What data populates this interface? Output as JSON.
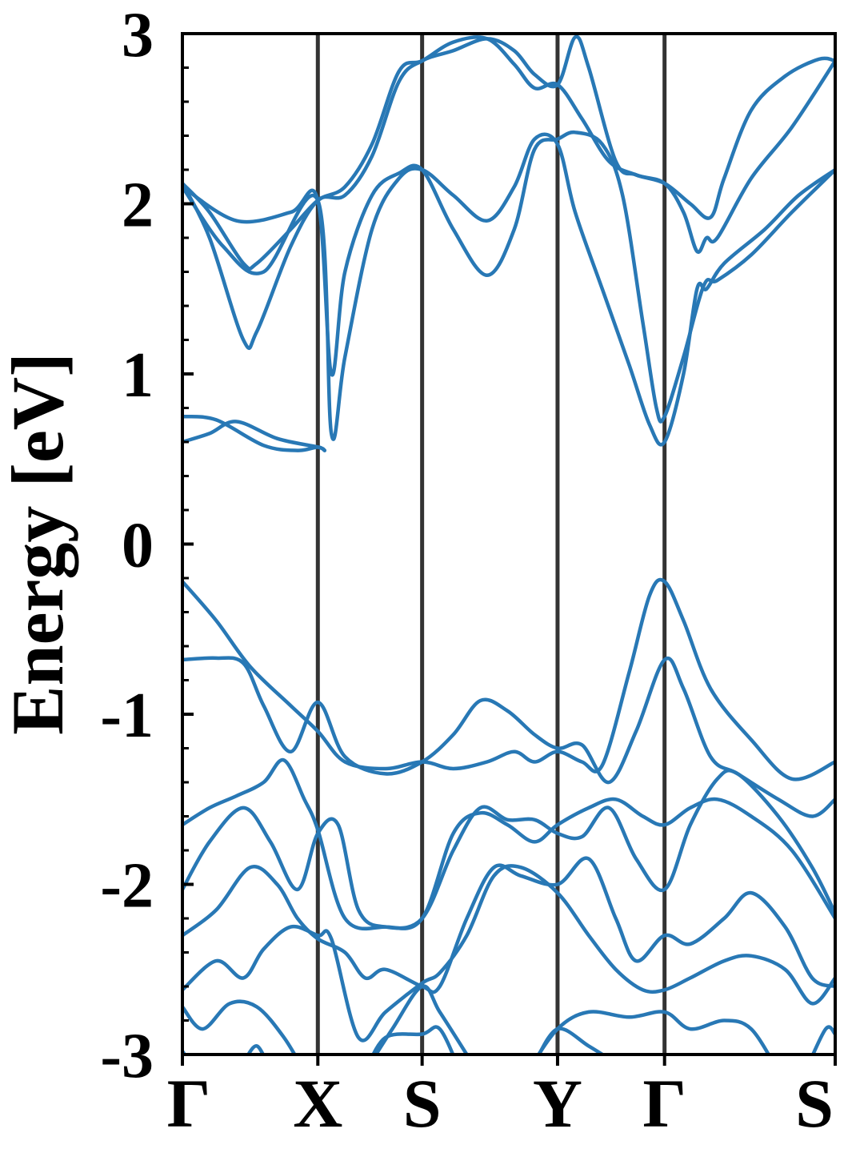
{
  "chart_data": {
    "type": "line",
    "title": "",
    "xlabel": "",
    "ylabel": "Energy [eV]",
    "ylim": [
      -3,
      3
    ],
    "yticks": [
      "-3",
      "-2",
      "-1",
      "0",
      "1",
      "2",
      "3"
    ],
    "grid": false,
    "line_color": "#2878b5",
    "kpath_line_color": "#333333",
    "kpoints": [
      {
        "label": "Γ",
        "x": 0.0
      },
      {
        "label": "X",
        "x": 1.0
      },
      {
        "label": "S",
        "x": 1.77
      },
      {
        "label": "Y",
        "x": 2.77
      },
      {
        "label": "Γ",
        "x": 3.56
      },
      {
        "label": "S",
        "x": 4.82
      }
    ],
    "series": [
      {
        "values": [
          [
            0,
            2.12
          ],
          [
            0.2,
            1.95
          ],
          [
            0.45,
            1.65
          ],
          [
            0.55,
            1.65
          ],
          [
            0.8,
            1.85
          ],
          [
            1.0,
            2.02
          ],
          [
            1.2,
            2.1
          ],
          [
            1.4,
            2.35
          ],
          [
            1.6,
            2.78
          ],
          [
            1.77,
            2.84
          ],
          [
            2.0,
            2.95
          ],
          [
            2.25,
            2.97
          ],
          [
            2.45,
            2.82
          ],
          [
            2.6,
            2.68
          ],
          [
            2.77,
            2.7
          ],
          [
            2.95,
            2.5
          ],
          [
            3.15,
            2.25
          ],
          [
            3.35,
            2.17
          ],
          [
            3.56,
            2.12
          ],
          [
            3.75,
            2.0
          ],
          [
            3.9,
            1.92
          ],
          [
            4.0,
            2.15
          ],
          [
            4.2,
            2.55
          ],
          [
            4.45,
            2.75
          ],
          [
            4.7,
            2.85
          ],
          [
            4.82,
            2.84
          ]
        ]
      },
      {
        "values": [
          [
            0,
            2.12
          ],
          [
            0.2,
            1.8
          ],
          [
            0.45,
            1.2
          ],
          [
            0.55,
            1.25
          ],
          [
            0.8,
            1.75
          ],
          [
            1.0,
            2.02
          ],
          [
            1.2,
            2.05
          ],
          [
            1.4,
            2.28
          ],
          [
            1.6,
            2.72
          ],
          [
            1.77,
            2.84
          ],
          [
            2.0,
            2.9
          ],
          [
            2.25,
            2.97
          ],
          [
            2.45,
            2.9
          ],
          [
            2.6,
            2.76
          ],
          [
            2.77,
            2.7
          ],
          [
            2.9,
            2.98
          ],
          [
            3.0,
            2.8
          ],
          [
            3.2,
            2.25
          ],
          [
            3.35,
            2.17
          ],
          [
            3.56,
            2.12
          ],
          [
            3.7,
            1.95
          ],
          [
            3.8,
            1.72
          ],
          [
            3.87,
            1.8
          ],
          [
            3.95,
            1.8
          ],
          [
            4.2,
            2.15
          ],
          [
            4.5,
            2.45
          ],
          [
            4.82,
            2.84
          ]
        ]
      },
      {
        "values": [
          [
            0,
            2.1
          ],
          [
            0.3,
            1.75
          ],
          [
            0.6,
            1.6
          ],
          [
            1.0,
            2.02
          ],
          [
            1.1,
            0.65
          ],
          [
            1.2,
            1.1
          ],
          [
            1.4,
            1.85
          ],
          [
            1.6,
            2.15
          ],
          [
            1.77,
            2.2
          ],
          [
            2.0,
            2.05
          ],
          [
            2.25,
            1.9
          ],
          [
            2.45,
            2.1
          ],
          [
            2.6,
            2.38
          ],
          [
            2.77,
            2.35
          ],
          [
            2.9,
            1.95
          ],
          [
            3.1,
            1.5
          ],
          [
            3.3,
            1.05
          ],
          [
            3.45,
            0.7
          ],
          [
            3.56,
            0.6
          ],
          [
            3.7,
            1.0
          ],
          [
            3.8,
            1.5
          ],
          [
            3.87,
            1.5
          ],
          [
            4.0,
            1.65
          ],
          [
            4.3,
            1.85
          ],
          [
            4.55,
            2.05
          ],
          [
            4.82,
            2.2
          ]
        ]
      },
      {
        "values": [
          [
            0,
            2.1
          ],
          [
            0.4,
            1.9
          ],
          [
            0.8,
            1.95
          ],
          [
            1.0,
            2.02
          ],
          [
            1.1,
            1.0
          ],
          [
            1.2,
            1.6
          ],
          [
            1.4,
            2.05
          ],
          [
            1.6,
            2.18
          ],
          [
            1.77,
            2.2
          ],
          [
            2.0,
            1.85
          ],
          [
            2.25,
            1.58
          ],
          [
            2.45,
            1.85
          ],
          [
            2.6,
            2.32
          ],
          [
            2.77,
            2.38
          ],
          [
            2.9,
            2.42
          ],
          [
            3.1,
            2.35
          ],
          [
            3.25,
            2.05
          ],
          [
            3.4,
            1.3
          ],
          [
            3.5,
            0.8
          ],
          [
            3.56,
            0.75
          ],
          [
            3.7,
            1.1
          ],
          [
            3.85,
            1.52
          ],
          [
            3.95,
            1.55
          ],
          [
            4.2,
            1.7
          ],
          [
            4.5,
            1.95
          ],
          [
            4.82,
            2.2
          ]
        ]
      },
      {
        "values": [
          [
            0,
            0.6
          ],
          [
            0.2,
            0.65
          ],
          [
            0.4,
            0.72
          ],
          [
            0.7,
            0.62
          ],
          [
            1.0,
            0.57
          ],
          [
            1.05,
            0.55
          ]
        ]
      },
      {
        "values": [
          [
            0,
            0.75
          ],
          [
            0.25,
            0.73
          ],
          [
            0.6,
            0.58
          ],
          [
            0.85,
            0.55
          ],
          [
            1.0,
            0.57
          ],
          [
            1.05,
            0.55
          ]
        ]
      },
      {
        "values": [
          [
            0,
            -0.22
          ],
          [
            0.25,
            -0.45
          ],
          [
            0.5,
            -0.72
          ],
          [
            0.8,
            -0.95
          ],
          [
            1.0,
            -1.1
          ],
          [
            1.2,
            -1.28
          ],
          [
            1.5,
            -1.32
          ],
          [
            1.77,
            -1.28
          ],
          [
            2.0,
            -1.32
          ],
          [
            2.25,
            -1.28
          ],
          [
            2.45,
            -1.22
          ],
          [
            2.6,
            -1.28
          ],
          [
            2.77,
            -1.22
          ],
          [
            2.95,
            -1.28
          ],
          [
            3.1,
            -1.3
          ],
          [
            3.3,
            -0.75
          ],
          [
            3.45,
            -0.3
          ],
          [
            3.56,
            -0.22
          ],
          [
            3.7,
            -0.45
          ],
          [
            3.9,
            -0.85
          ],
          [
            4.2,
            -1.15
          ],
          [
            4.5,
            -1.38
          ],
          [
            4.82,
            -1.28
          ]
        ]
      },
      {
        "values": [
          [
            0,
            -0.68
          ],
          [
            0.25,
            -0.67
          ],
          [
            0.45,
            -0.7
          ],
          [
            0.6,
            -0.95
          ],
          [
            0.8,
            -1.22
          ],
          [
            1.0,
            -0.93
          ],
          [
            1.2,
            -1.25
          ],
          [
            1.5,
            -1.35
          ],
          [
            1.77,
            -1.28
          ],
          [
            2.0,
            -1.12
          ],
          [
            2.2,
            -0.92
          ],
          [
            2.4,
            -0.98
          ],
          [
            2.6,
            -1.12
          ],
          [
            2.77,
            -1.2
          ],
          [
            2.95,
            -1.18
          ],
          [
            3.15,
            -1.4
          ],
          [
            3.35,
            -1.1
          ],
          [
            3.56,
            -0.68
          ],
          [
            3.7,
            -0.85
          ],
          [
            3.9,
            -1.25
          ],
          [
            4.1,
            -1.35
          ],
          [
            4.4,
            -1.5
          ],
          [
            4.65,
            -1.6
          ],
          [
            4.82,
            -1.5
          ]
        ]
      },
      {
        "values": [
          [
            0,
            -1.65
          ],
          [
            0.2,
            -1.55
          ],
          [
            0.4,
            -1.48
          ],
          [
            0.6,
            -1.4
          ],
          [
            0.75,
            -1.27
          ],
          [
            0.9,
            -1.5
          ],
          [
            1.0,
            -1.68
          ],
          [
            1.2,
            -2.2
          ],
          [
            1.5,
            -2.25
          ],
          [
            1.77,
            -2.2
          ],
          [
            2.0,
            -1.7
          ],
          [
            2.2,
            -1.58
          ],
          [
            2.4,
            -1.65
          ],
          [
            2.6,
            -1.75
          ],
          [
            2.77,
            -1.65
          ],
          [
            3.0,
            -1.55
          ],
          [
            3.2,
            -1.5
          ],
          [
            3.4,
            -1.6
          ],
          [
            3.56,
            -1.65
          ],
          [
            3.75,
            -1.55
          ],
          [
            3.95,
            -1.5
          ],
          [
            4.2,
            -1.6
          ],
          [
            4.5,
            -1.8
          ],
          [
            4.82,
            -2.2
          ]
        ]
      },
      {
        "values": [
          [
            0,
            -2.03
          ],
          [
            0.2,
            -1.75
          ],
          [
            0.45,
            -1.55
          ],
          [
            0.65,
            -1.75
          ],
          [
            0.85,
            -2.03
          ],
          [
            1.0,
            -1.7
          ],
          [
            1.15,
            -1.65
          ],
          [
            1.3,
            -2.15
          ],
          [
            1.5,
            -2.25
          ],
          [
            1.77,
            -2.2
          ],
          [
            2.0,
            -1.8
          ],
          [
            2.2,
            -1.55
          ],
          [
            2.4,
            -1.62
          ],
          [
            2.6,
            -1.62
          ],
          [
            2.77,
            -1.7
          ],
          [
            2.95,
            -1.72
          ],
          [
            3.15,
            -1.55
          ],
          [
            3.35,
            -1.85
          ],
          [
            3.56,
            -2.03
          ],
          [
            3.75,
            -1.65
          ],
          [
            3.95,
            -1.38
          ],
          [
            4.1,
            -1.35
          ],
          [
            4.4,
            -1.6
          ],
          [
            4.65,
            -1.9
          ],
          [
            4.82,
            -2.17
          ]
        ]
      },
      {
        "values": [
          [
            0,
            -2.3
          ],
          [
            0.25,
            -2.15
          ],
          [
            0.5,
            -1.9
          ],
          [
            0.7,
            -2.0
          ],
          [
            0.85,
            -2.2
          ],
          [
            1.0,
            -2.32
          ],
          [
            1.2,
            -2.4
          ],
          [
            1.35,
            -2.55
          ],
          [
            1.5,
            -2.5
          ],
          [
            1.77,
            -2.6
          ],
          [
            1.9,
            -2.6
          ],
          [
            2.1,
            -2.2
          ],
          [
            2.3,
            -1.9
          ],
          [
            2.5,
            -1.95
          ],
          [
            2.77,
            -2.0
          ],
          [
            3.0,
            -1.85
          ],
          [
            3.2,
            -2.2
          ],
          [
            3.35,
            -2.45
          ],
          [
            3.56,
            -2.3
          ],
          [
            3.75,
            -2.35
          ],
          [
            4.0,
            -2.2
          ],
          [
            4.2,
            -2.05
          ],
          [
            4.45,
            -2.25
          ],
          [
            4.65,
            -2.55
          ],
          [
            4.82,
            -2.6
          ]
        ]
      },
      {
        "values": [
          [
            0,
            -2.62
          ],
          [
            0.25,
            -2.45
          ],
          [
            0.45,
            -2.55
          ],
          [
            0.6,
            -2.38
          ],
          [
            0.8,
            -2.25
          ],
          [
            1.0,
            -2.3
          ],
          [
            1.1,
            -2.32
          ],
          [
            1.3,
            -2.9
          ],
          [
            1.5,
            -2.75
          ],
          [
            1.77,
            -2.58
          ],
          [
            1.9,
            -2.52
          ],
          [
            2.1,
            -2.3
          ],
          [
            2.3,
            -1.95
          ],
          [
            2.5,
            -1.9
          ],
          [
            2.77,
            -2.05
          ],
          [
            3.0,
            -2.3
          ],
          [
            3.2,
            -2.5
          ],
          [
            3.4,
            -2.62
          ],
          [
            3.56,
            -2.62
          ],
          [
            3.75,
            -2.55
          ],
          [
            4.0,
            -2.45
          ],
          [
            4.2,
            -2.42
          ],
          [
            4.45,
            -2.5
          ],
          [
            4.65,
            -2.7
          ],
          [
            4.82,
            -2.55
          ]
        ]
      },
      {
        "values": [
          [
            0,
            -2.72
          ],
          [
            0.15,
            -2.85
          ],
          [
            0.35,
            -2.7
          ],
          [
            0.55,
            -2.72
          ],
          [
            0.75,
            -2.9
          ],
          [
            0.9,
            -3.1
          ]
        ]
      },
      {
        "values": [
          [
            0,
            -2.98
          ],
          [
            0.1,
            -3.1
          ]
        ]
      },
      {
        "values": [
          [
            0.45,
            -3.05
          ],
          [
            0.55,
            -2.95
          ],
          [
            0.65,
            -3.1
          ]
        ]
      },
      {
        "values": [
          [
            1.35,
            -3.1
          ],
          [
            1.5,
            -2.9
          ],
          [
            1.77,
            -2.88
          ],
          [
            1.9,
            -2.85
          ],
          [
            2.05,
            -3.1
          ]
        ]
      },
      {
        "values": [
          [
            1.35,
            -3.1
          ],
          [
            1.55,
            -2.85
          ],
          [
            1.77,
            -2.6
          ],
          [
            1.9,
            -2.75
          ],
          [
            2.1,
            -3.0
          ]
        ]
      },
      {
        "values": [
          [
            2.55,
            -3.1
          ],
          [
            2.77,
            -2.85
          ],
          [
            3.0,
            -2.75
          ],
          [
            3.3,
            -2.78
          ],
          [
            3.56,
            -2.75
          ],
          [
            3.75,
            -2.85
          ],
          [
            4.0,
            -2.8
          ],
          [
            4.2,
            -2.85
          ],
          [
            4.4,
            -3.1
          ]
        ]
      },
      {
        "values": [
          [
            2.6,
            -3.05
          ],
          [
            2.77,
            -2.85
          ],
          [
            3.0,
            -2.95
          ],
          [
            3.2,
            -3.05
          ]
        ]
      },
      {
        "values": [
          [
            4.6,
            -3.1
          ],
          [
            4.75,
            -2.85
          ],
          [
            4.82,
            -2.88
          ]
        ]
      }
    ]
  }
}
